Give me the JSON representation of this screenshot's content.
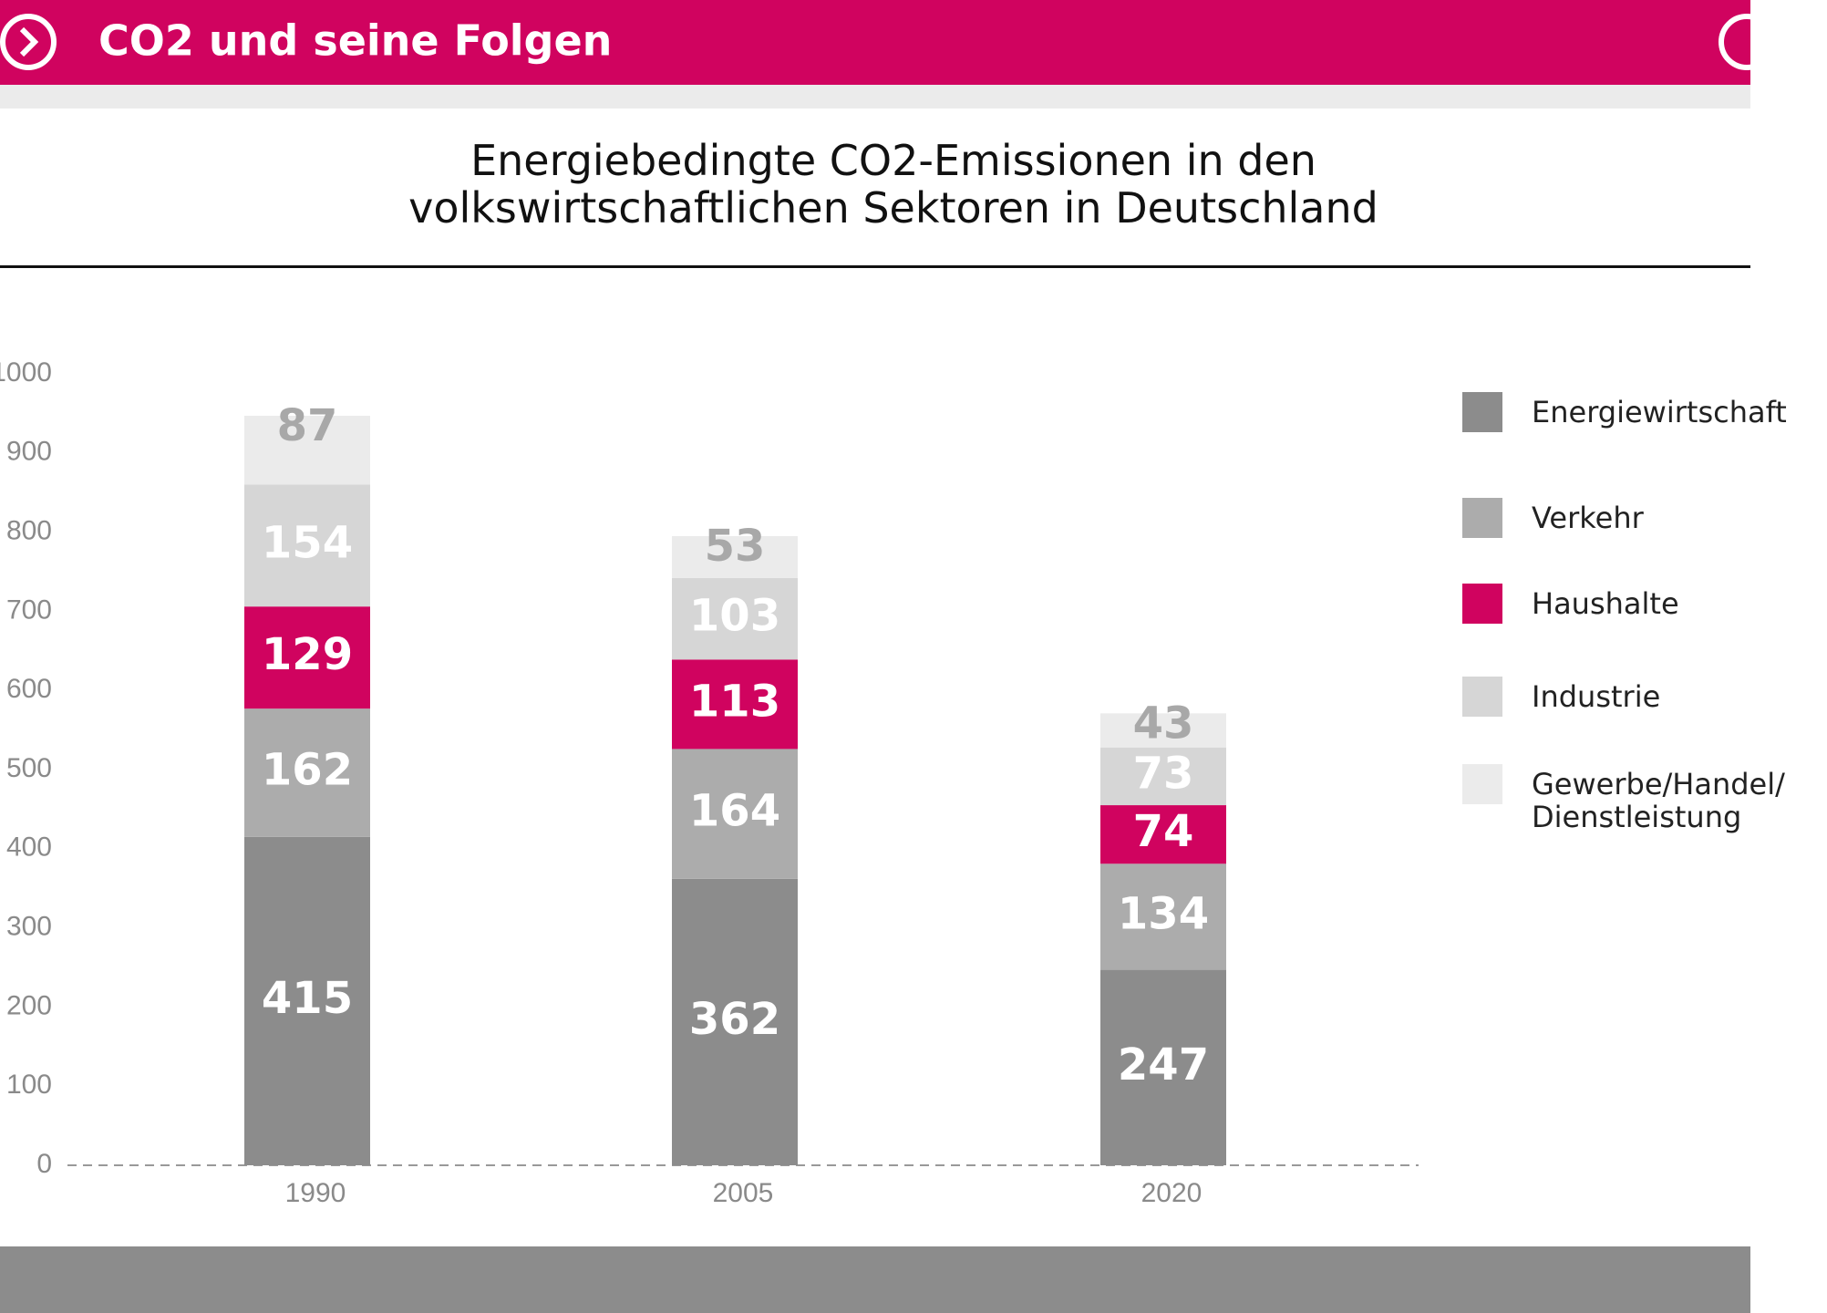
{
  "header": {
    "title": "CO2 und seine Folgen"
  },
  "chart_data": {
    "type": "stacked_bar",
    "title": "Energiebedingte CO2-Emissionen in den volkswirtschaftlichen Sektoren in Deutschland",
    "categories": [
      "1990",
      "2005",
      "2020"
    ],
    "series": [
      {
        "name": "Energiewirtschaft",
        "color": "#8c8c8c",
        "label_color": "#ffffff",
        "values": [
          415,
          362,
          247
        ]
      },
      {
        "name": "Verkehr",
        "color": "#acacac",
        "label_color": "#ffffff",
        "values": [
          162,
          164,
          134
        ]
      },
      {
        "name": "Haushalte",
        "color": "#d0035f",
        "label_color": "#ffffff",
        "values": [
          129,
          113,
          74
        ]
      },
      {
        "name": "Industrie",
        "color": "#d6d6d6",
        "label_color": "#ffffff",
        "values": [
          154,
          103,
          73
        ]
      },
      {
        "name": "Gewerbe/Handel/ Dienstleistung",
        "color": "#ebebeb",
        "label_color": "#a8a8a8",
        "values": [
          87,
          53,
          43
        ]
      }
    ],
    "ylim": [
      0,
      1000
    ],
    "yticks": [
      0,
      100,
      200,
      300,
      400,
      500,
      600,
      700,
      800,
      900,
      1000
    ],
    "legend": "right"
  }
}
